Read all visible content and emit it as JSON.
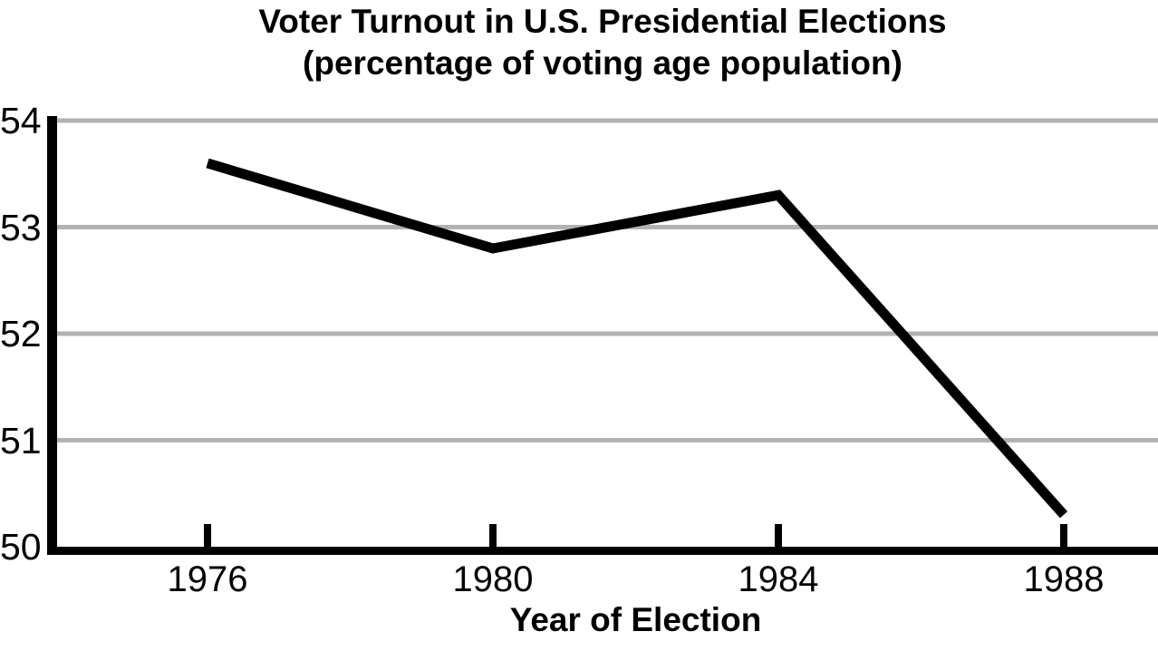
{
  "title": {
    "line1": "Voter Turnout in U.S. Presidential Elections",
    "line2": "(percentage of voting age population)"
  },
  "chart_data": {
    "type": "line",
    "title": "Voter Turnout in U.S. Presidential Elections (percentage of voting age population)",
    "series_name": "Voter turnout",
    "x": [
      1976,
      1980,
      1984,
      1988
    ],
    "x_tick_labels": [
      "1976",
      "1980",
      "1984",
      "1988"
    ],
    "values": [
      53.6,
      52.8,
      53.3,
      50.3
    ],
    "xlabel": "Year of Election",
    "ylabel": "",
    "ylim": [
      50,
      54
    ],
    "yticks": [
      50,
      51,
      52,
      53,
      54
    ],
    "ytick_labels": [
      "50",
      "51",
      "52",
      "53",
      "54"
    ],
    "grid": "horizontal gridlines at each integer y value",
    "legend_position": "none",
    "colors": {
      "background": "#ffffff",
      "line": "#000000",
      "axis": "#000000",
      "gridline": "#b0b2b5",
      "text": "#000000"
    }
  }
}
